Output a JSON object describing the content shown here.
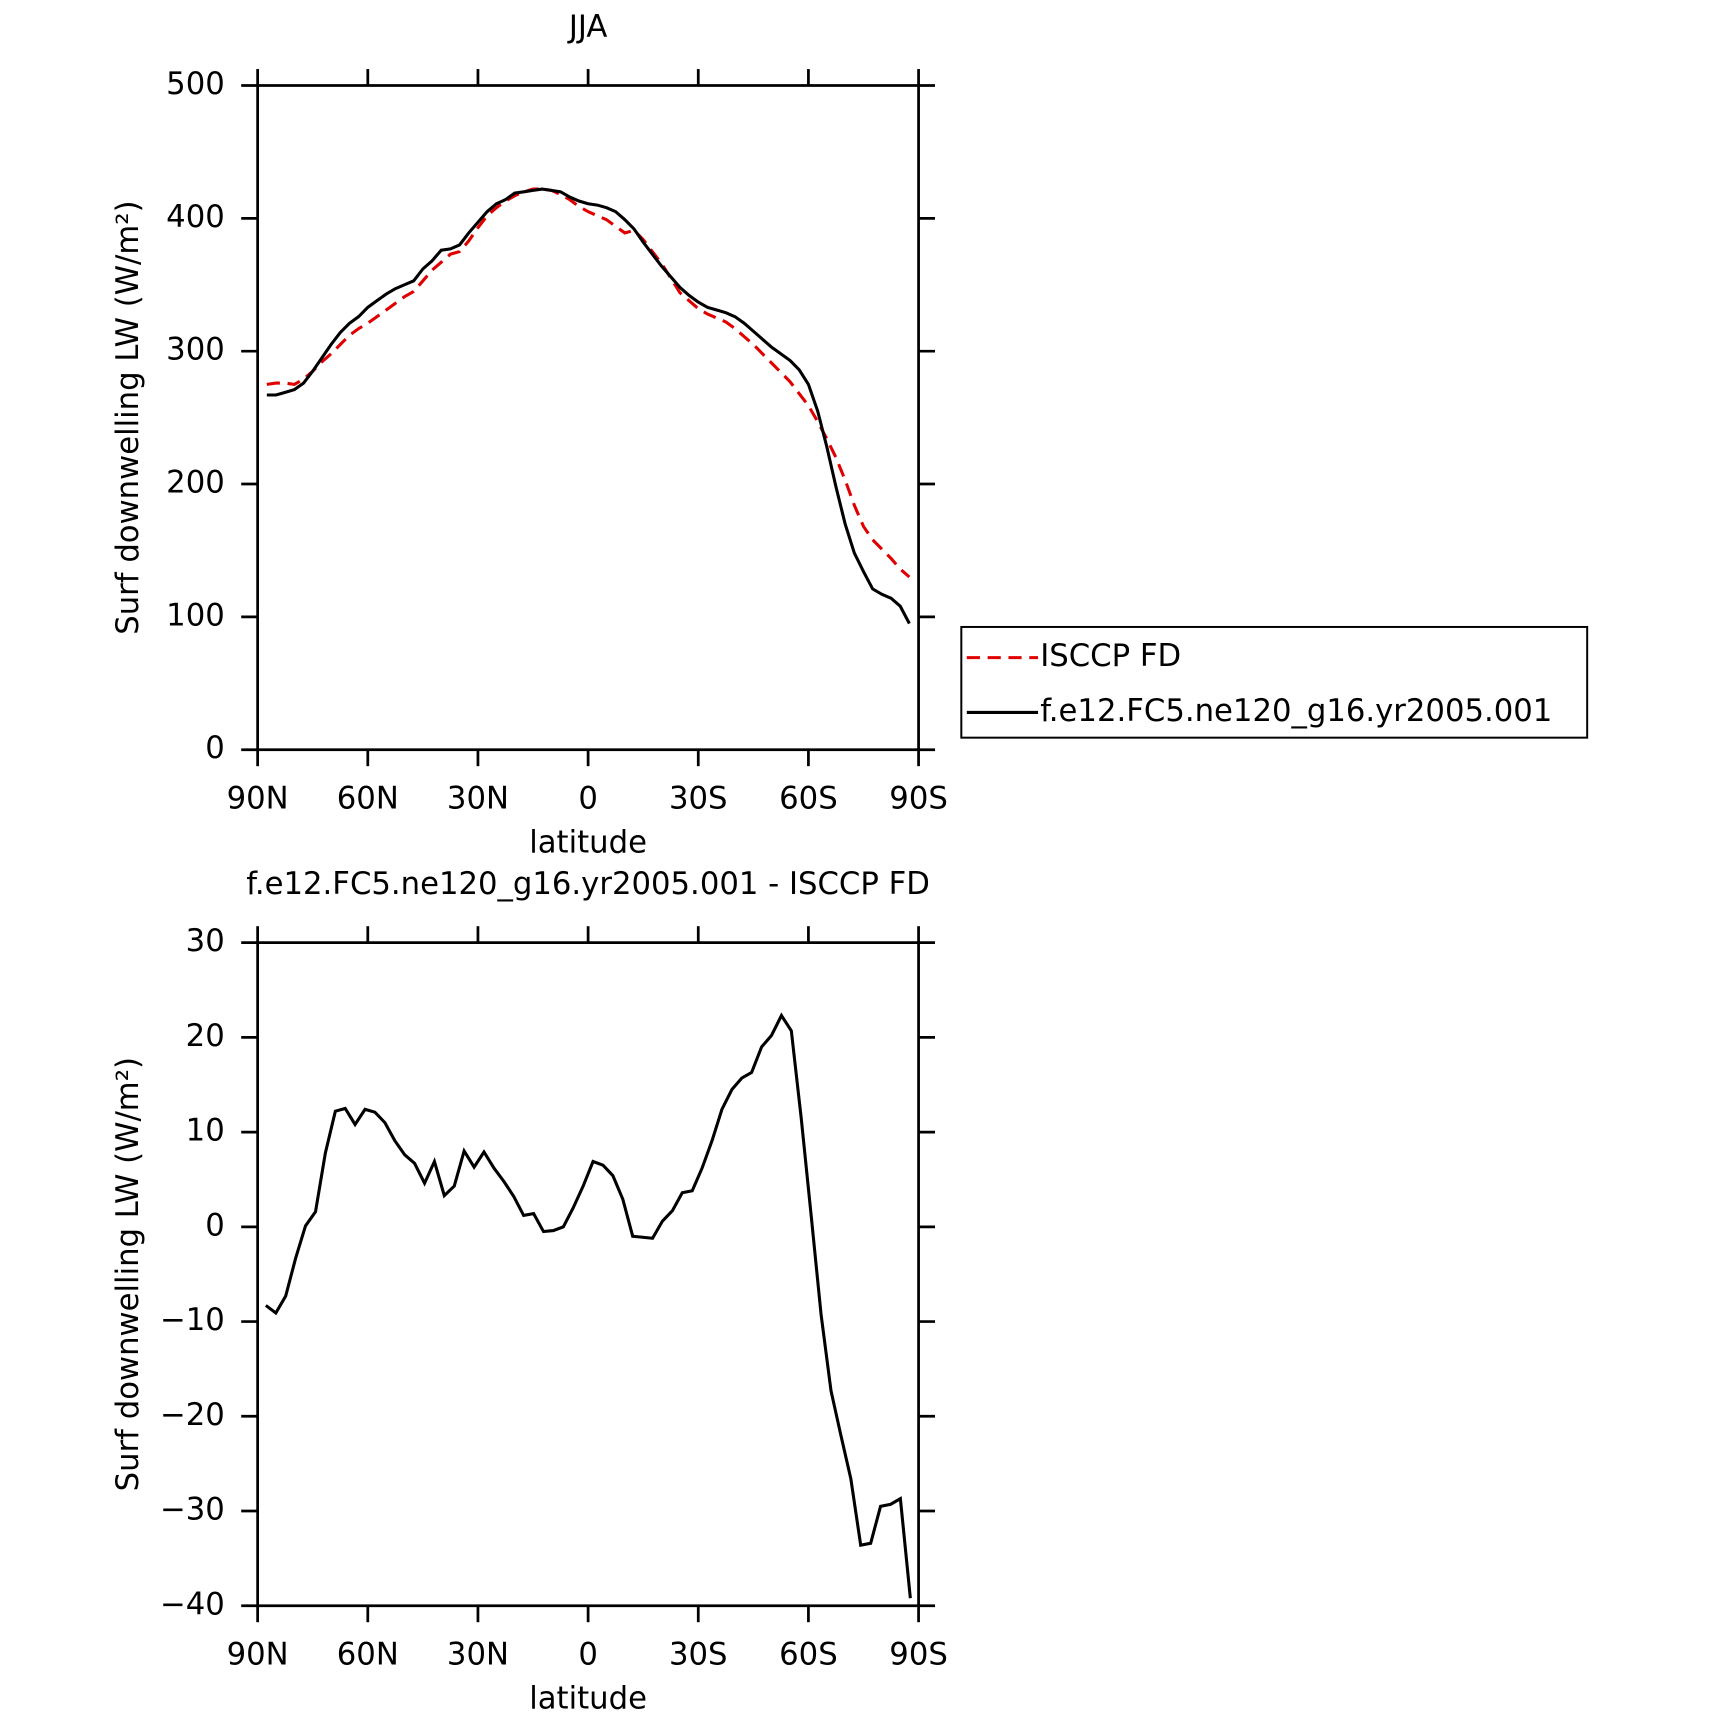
{
  "chart_data": [
    {
      "type": "line",
      "title": "JJA",
      "xlabel": "latitude",
      "ylabel": "Surf downwelling LW (W/m²)",
      "x": [
        87.5,
        85,
        82.5,
        80,
        77.5,
        75,
        72.5,
        70,
        67.5,
        65,
        62.5,
        60,
        57.5,
        55,
        52.5,
        50,
        47.5,
        45,
        42.5,
        40,
        37.5,
        35,
        32.5,
        30,
        27.5,
        25,
        22.5,
        20,
        17.5,
        15,
        12.5,
        10,
        7.5,
        5,
        2.5,
        0,
        -2.5,
        -5,
        -7.5,
        -10,
        -12.5,
        -15,
        -17.5,
        -20,
        -22.5,
        -25,
        -27.5,
        -30,
        -32.5,
        -35,
        -37.5,
        -40,
        -42.5,
        -45,
        -47.5,
        -50,
        -52.5,
        -55,
        -57.5,
        -60,
        -62.5,
        -65,
        -67.5,
        -70,
        -72.5,
        -75,
        -77.5,
        -80,
        -82.5,
        -85,
        -87.5
      ],
      "series": [
        {
          "name": "ISCCP FD",
          "color": "#e00000",
          "dash": true,
          "values": [
            275,
            276,
            276,
            275,
            279,
            285,
            292,
            298,
            305,
            312,
            317,
            321,
            326,
            331,
            336,
            341,
            345,
            353,
            361,
            367,
            373,
            375,
            383,
            393,
            402,
            408,
            413,
            417,
            420,
            422,
            422,
            421,
            418,
            414,
            409,
            405,
            402,
            399,
            394,
            389,
            391,
            384,
            375,
            366,
            355,
            344,
            338,
            332,
            328,
            325,
            322,
            317,
            311,
            305,
            298,
            291,
            284,
            277,
            268,
            259,
            247,
            234,
            220,
            203,
            184,
            168,
            158,
            151,
            144,
            136,
            130
          ]
        },
        {
          "name": "f.e12.FC5.ne120_g16.yr2005.001",
          "color": "#000000",
          "dash": false,
          "values": [
            267,
            267,
            269,
            271,
            276,
            285,
            295,
            305,
            314,
            321,
            326,
            333,
            338,
            343,
            347,
            350,
            353,
            362,
            368,
            376,
            377,
            380,
            389,
            397,
            405,
            411,
            414,
            419,
            420,
            421,
            422,
            421,
            420,
            416,
            413,
            411,
            410,
            408,
            405,
            399,
            392,
            382,
            373,
            364,
            356,
            348,
            342,
            337,
            333,
            331,
            329,
            326,
            321,
            315,
            309,
            303,
            298,
            293,
            286,
            275,
            255,
            228,
            198,
            170,
            148,
            134,
            121,
            117,
            114,
            108,
            95
          ]
        }
      ],
      "xlim": [
        90,
        -90
      ],
      "xticks": [
        {
          "value": 90,
          "label": "90N"
        },
        {
          "value": 60,
          "label": "60N"
        },
        {
          "value": 30,
          "label": "30N"
        },
        0,
        {
          "value": -30,
          "label": "30S"
        },
        {
          "value": -60,
          "label": "60S"
        },
        {
          "value": -90,
          "label": "90S"
        }
      ],
      "ylim": [
        0,
        500
      ],
      "yticks": [
        0,
        100,
        200,
        300,
        400,
        500
      ],
      "legend": "right"
    },
    {
      "type": "line",
      "title": "f.e12.FC5.ne120_g16.yr2005.001 - ISCCP FD",
      "xlabel": "latitude",
      "ylabel": "Surf downwelling LW (W/m²)",
      "x": [
        87.75,
        85.05,
        82.35,
        79.65,
        76.95,
        74.25,
        71.55,
        68.85,
        66.15,
        63.45,
        60.75,
        58.05,
        55.35,
        52.65,
        49.95,
        47.25,
        44.55,
        41.85,
        39.15,
        36.45,
        33.75,
        31.05,
        28.35,
        25.65,
        22.95,
        20.25,
        17.55,
        14.85,
        12.15,
        9.45,
        6.75,
        4.05,
        1.35,
        -1.35,
        -4.05,
        -6.75,
        -9.45,
        -12.15,
        -14.85,
        -17.55,
        -20.25,
        -22.95,
        -25.65,
        -28.35,
        -31.05,
        -33.75,
        -36.45,
        -39.15,
        -41.85,
        -44.55,
        -47.25,
        -49.95,
        -52.65,
        -55.35,
        -58.05,
        -60.75,
        -63.45,
        -66.15,
        -68.85,
        -71.55,
        -74.25,
        -76.95,
        -79.65,
        -82.35,
        -85.05,
        -87.75
      ],
      "series": [
        {
          "name": "f.e12.FC5.ne120_g16.yr2005.001",
          "color": "#000000",
          "dash": false,
          "values": [
            -8.3,
            -9.1,
            -7.3,
            -3.3,
            0.1,
            1.6,
            7.8,
            12.2,
            12.5,
            10.8,
            12.4,
            12.1,
            11,
            9.1,
            7.6,
            6.7,
            4.6,
            6.9,
            3.3,
            4.3,
            8,
            6.3,
            7.9,
            6.2,
            4.8,
            3.2,
            1.2,
            1.4,
            -0.5,
            -0.4,
            0,
            2,
            4.3,
            6.9,
            6.5,
            5.4,
            2.9,
            -1,
            -1.1,
            -1.2,
            0.6,
            1.7,
            3.6,
            3.8,
            6.2,
            9.1,
            12.4,
            14.5,
            15.7,
            16.3,
            19,
            20.2,
            22.3,
            20.7,
            11.4,
            1.2,
            -9.3,
            -17.3,
            -22,
            -26.6,
            -33.6,
            -33.4,
            -29.5,
            -29.3,
            -28.7,
            -39.2
          ]
        }
      ],
      "xlim": [
        90,
        -90
      ],
      "xticks": [
        {
          "value": 90,
          "label": "90N"
        },
        {
          "value": 60,
          "label": "60N"
        },
        {
          "value": 30,
          "label": "30N"
        },
        0,
        {
          "value": -30,
          "label": "30S"
        },
        {
          "value": -60,
          "label": "60S"
        },
        {
          "value": -90,
          "label": "90S"
        }
      ],
      "ylim": [
        -40,
        30
      ],
      "yticks": [
        {
          "value": -40,
          "label": "−40"
        },
        {
          "value": -30,
          "label": "−30"
        },
        {
          "value": -20,
          "label": "−20"
        },
        {
          "value": -10,
          "label": "−10"
        },
        0,
        10,
        20,
        30
      ]
    }
  ]
}
